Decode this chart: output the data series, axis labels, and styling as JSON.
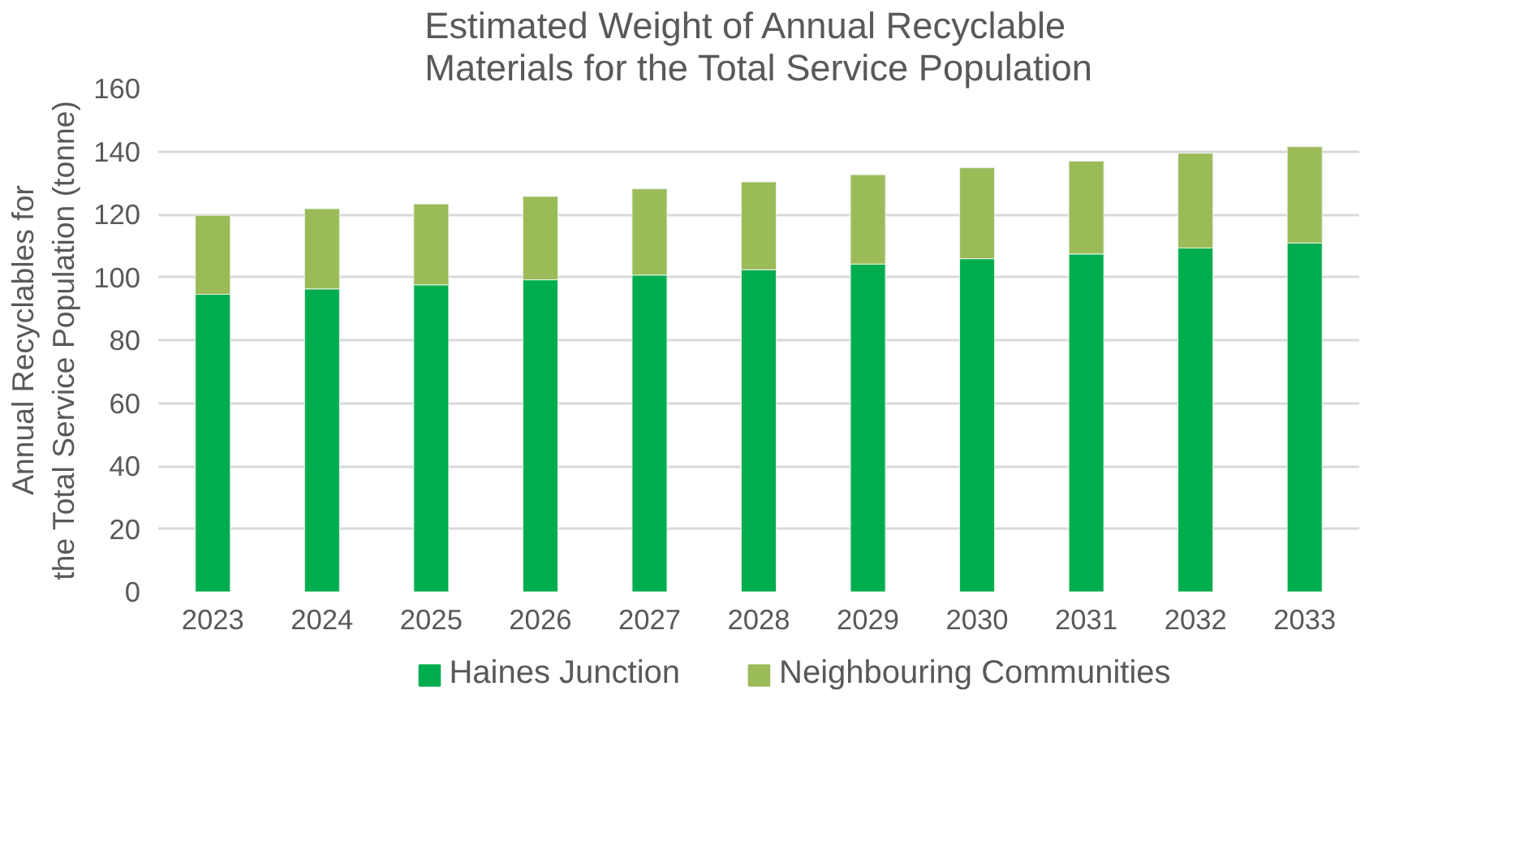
{
  "chart_data": {
    "type": "bar",
    "stacked": true,
    "title": "Estimated Weight of Annual Recyclable Materials for the Total Service Population",
    "ylabel": "Annual Recyclables for the Total Service Population (tonne)",
    "categories": [
      "2023",
      "2024",
      "2025",
      "2026",
      "2027",
      "2028",
      "2029",
      "2030",
      "2031",
      "2032",
      "2033"
    ],
    "series": [
      {
        "name": "Haines Junction",
        "color": "#00ad4e",
        "values": [
          94.6,
          96.3,
          97.6,
          99.2,
          100.7,
          102.4,
          104.2,
          105.9,
          107.4,
          109.3,
          110.9
        ]
      },
      {
        "name": "Neighbouring Communities",
        "color": "#9bbb59",
        "values": [
          25.1,
          25.5,
          25.7,
          26.5,
          27.4,
          27.9,
          28.4,
          28.9,
          29.5,
          30.1,
          30.6
        ]
      }
    ],
    "ylim": [
      0,
      160
    ],
    "yticks": [
      0,
      20,
      40,
      60,
      80,
      100,
      120,
      140,
      160
    ],
    "grid": "y",
    "legend": "bottom"
  }
}
